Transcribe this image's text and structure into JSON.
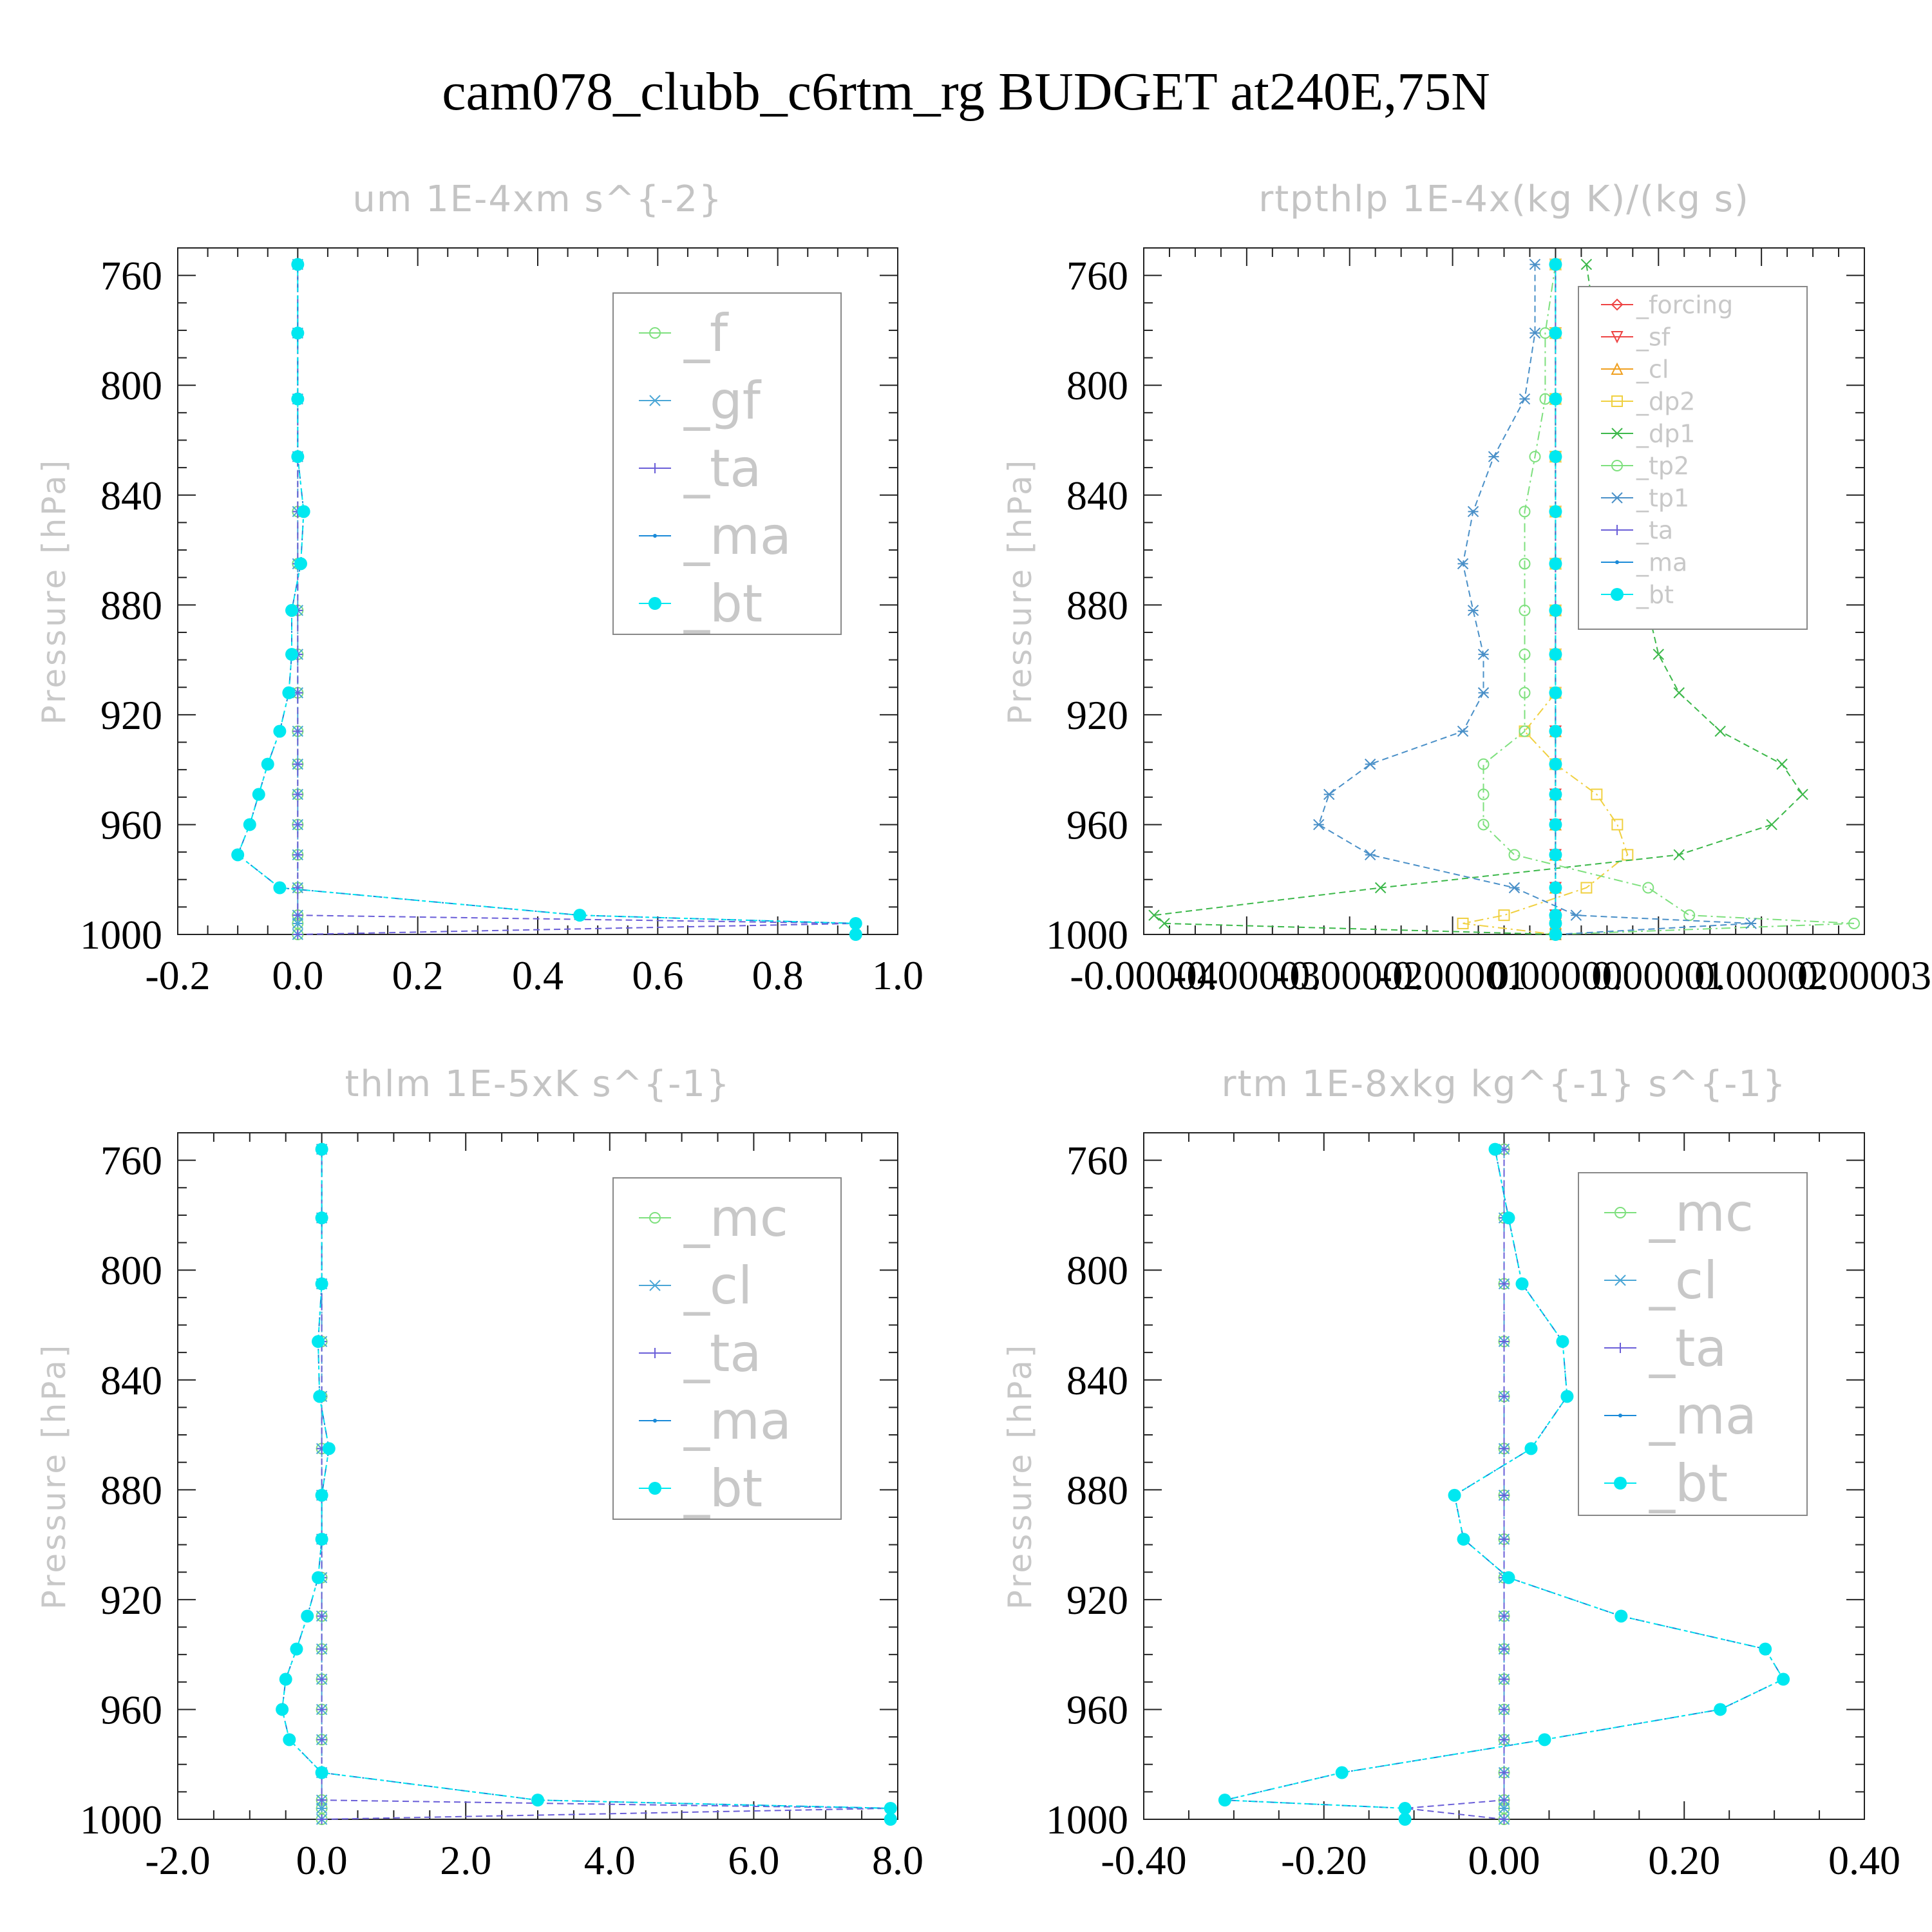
{
  "figure_title": "cam078_clubb_c6rtm_rg  BUDGET at240E,75N",
  "ylabel": "Pressure [hPa]",
  "chart_data": [
    {
      "type": "line",
      "title": "um  1E-4xm s^{-2}",
      "ylabel": "Pressure [hPa]",
      "xlim": [
        -0.2,
        1.0
      ],
      "xticks": [
        "-0.2",
        "0.0",
        "0.2",
        "0.4",
        "0.6",
        "0.8",
        "1.0"
      ],
      "ylim": [
        750,
        1000
      ],
      "yticks": [
        "760",
        "800",
        "840",
        "880",
        "920",
        "960",
        "1000"
      ],
      "legend_position": "top-right",
      "y": [
        756,
        781,
        805,
        826,
        846,
        865,
        882,
        898,
        912,
        926,
        938,
        949,
        960,
        971,
        983,
        993,
        996,
        1000
      ],
      "series": [
        {
          "name": "_f",
          "color": "#7ee07e",
          "marker": "circle",
          "values": [
            0,
            0,
            0,
            0,
            0,
            0,
            0,
            0,
            0,
            0,
            0,
            0,
            0,
            0,
            0,
            0,
            0,
            0
          ]
        },
        {
          "name": "_gf",
          "color": "#4aa6d6",
          "marker": "asterisk",
          "values": [
            0,
            0,
            0,
            0,
            0,
            0,
            0,
            0,
            0,
            0,
            0,
            0,
            0,
            0,
            0,
            0,
            0,
            0
          ]
        },
        {
          "name": "_ta",
          "color": "#6a5ed8",
          "marker": "plus",
          "values": [
            0,
            0,
            0,
            0,
            0,
            0,
            0,
            0,
            0,
            0,
            0,
            0,
            0,
            0,
            0,
            0,
            0.93,
            0
          ]
        },
        {
          "name": "_ma",
          "color": "#1a8ad8",
          "marker": "dot",
          "values": [
            0,
            0,
            0,
            0,
            0.01,
            0.005,
            -0.01,
            -0.01,
            -0.015,
            -0.03,
            -0.05,
            -0.065,
            -0.08,
            -0.1,
            -0.03,
            0.47,
            0.93,
            0.93
          ]
        },
        {
          "name": "_bt",
          "color": "#00e8f0",
          "marker": "filled",
          "values": [
            0,
            0,
            0,
            0,
            0.01,
            0.005,
            -0.01,
            -0.01,
            -0.015,
            -0.03,
            -0.05,
            -0.065,
            -0.08,
            -0.1,
            -0.03,
            0.47,
            0.93,
            0.93
          ]
        }
      ]
    },
    {
      "type": "line",
      "title": "rtpthlp  1E-4x(kg K)/(kg s)",
      "ylabel": "Pressure [hPa]",
      "xlim": [
        -4e-05,
        3e-05
      ],
      "xticks": [
        "-0.00004",
        "-0.00003",
        "-0.00002",
        "-0.00001",
        "0.00000",
        "0.00001",
        "0.00002",
        "0.00003"
      ],
      "ylim": [
        750,
        1000
      ],
      "yticks": [
        "760",
        "800",
        "840",
        "880",
        "920",
        "960",
        "1000"
      ],
      "legend_position": "top-right",
      "y": [
        756,
        781,
        805,
        826,
        846,
        865,
        882,
        898,
        912,
        926,
        938,
        949,
        960,
        971,
        983,
        993,
        996,
        1000
      ],
      "series": [
        {
          "name": "_forcing",
          "color": "#ee4444",
          "marker": "diamond",
          "values": [
            0,
            0,
            0,
            0,
            0,
            0,
            0,
            0,
            0,
            0,
            0,
            0,
            0,
            0,
            0,
            0,
            0,
            0
          ]
        },
        {
          "name": "_sf",
          "color": "#ee4444",
          "marker": "triangle-down",
          "values": [
            0,
            0,
            0,
            0,
            0,
            0,
            0,
            0,
            0,
            0,
            0,
            0,
            0,
            0,
            0,
            0,
            0,
            0
          ]
        },
        {
          "name": "_cl",
          "color": "#f0a020",
          "marker": "triangle-up",
          "values": [
            0,
            0,
            0,
            0,
            0,
            0,
            0,
            0,
            0,
            0,
            0,
            0,
            0,
            0,
            0,
            0,
            0,
            0
          ]
        },
        {
          "name": "_dp2",
          "color": "#f0d040",
          "marker": "square",
          "values": [
            0,
            0,
            0,
            0,
            0,
            0,
            0,
            0,
            0,
            -3e-06,
            0,
            4e-06,
            6e-06,
            7e-06,
            3e-06,
            -5e-06,
            -9e-06,
            0
          ]
        },
        {
          "name": "_dp1",
          "color": "#3cb84a",
          "marker": "x",
          "values": [
            3e-06,
            4e-06,
            4e-06,
            5e-06,
            6e-06,
            7e-06,
            9e-06,
            1e-05,
            1.2e-05,
            1.6e-05,
            2.2e-05,
            2.4e-05,
            2.1e-05,
            1.2e-05,
            -1.7e-05,
            -3.9e-05,
            -3.8e-05,
            0
          ]
        },
        {
          "name": "_tp2",
          "color": "#7ee07e",
          "marker": "circle",
          "values": [
            0,
            -1e-06,
            -1e-06,
            -2e-06,
            -3e-06,
            -3e-06,
            -3e-06,
            -3e-06,
            -3e-06,
            -3e-06,
            -7e-06,
            -7e-06,
            -7e-06,
            -4e-06,
            9e-06,
            1.3e-05,
            2.9e-05,
            0
          ]
        },
        {
          "name": "_tp1",
          "color": "#4a90c8",
          "marker": "asterisk",
          "values": [
            -2e-06,
            -2e-06,
            -3e-06,
            -6e-06,
            -8e-06,
            -9e-06,
            -8e-06,
            -7e-06,
            -7e-06,
            -9e-06,
            -1.8e-05,
            -2.2e-05,
            -2.3e-05,
            -1.8e-05,
            -4e-06,
            2e-06,
            1.9e-05,
            0
          ]
        },
        {
          "name": "_ta",
          "color": "#6a5ed8",
          "marker": "plus",
          "values": [
            0,
            0,
            0,
            0,
            0,
            0,
            0,
            0,
            0,
            0,
            0,
            0,
            0,
            0,
            0,
            0,
            0,
            0
          ]
        },
        {
          "name": "_ma",
          "color": "#1a8ad8",
          "marker": "dot",
          "values": [
            0,
            0,
            0,
            0,
            0,
            0,
            0,
            0,
            0,
            0,
            0,
            0,
            0,
            0,
            0,
            0,
            0,
            0
          ]
        },
        {
          "name": "_bt",
          "color": "#00e8f0",
          "marker": "filled",
          "values": [
            0,
            0,
            0,
            0,
            0,
            0,
            0,
            0,
            0,
            0,
            0,
            0,
            0,
            0,
            0,
            0,
            0,
            0
          ]
        }
      ]
    },
    {
      "type": "line",
      "title": "thlm  1E-5xK s^{-1}",
      "ylabel": "Pressure [hPa]",
      "xlim": [
        -2.0,
        8.0
      ],
      "xticks": [
        "-2.0",
        "0.0",
        "2.0",
        "4.0",
        "6.0",
        "8.0"
      ],
      "ylim": [
        750,
        1000
      ],
      "yticks": [
        "760",
        "800",
        "840",
        "880",
        "920",
        "960",
        "1000"
      ],
      "legend_position": "top-right",
      "y": [
        756,
        781,
        805,
        826,
        846,
        865,
        882,
        898,
        912,
        926,
        938,
        949,
        960,
        971,
        983,
        993,
        996,
        1000
      ],
      "series": [
        {
          "name": "_mc",
          "color": "#7ee07e",
          "marker": "circle",
          "values": [
            0,
            0,
            0,
            0,
            0,
            0,
            0,
            0,
            0,
            0,
            0,
            0,
            0,
            0,
            0,
            0,
            0,
            0
          ]
        },
        {
          "name": "_cl",
          "color": "#4aa6d6",
          "marker": "asterisk",
          "values": [
            0,
            0,
            0,
            0,
            0,
            0,
            0,
            0,
            0,
            0,
            0,
            0,
            0,
            0,
            0,
            0,
            0,
            0
          ]
        },
        {
          "name": "_ta",
          "color": "#6a5ed8",
          "marker": "plus",
          "values": [
            0,
            0,
            0,
            0,
            0,
            0,
            0,
            0,
            0,
            0,
            0,
            0,
            0,
            0,
            0,
            0,
            7.9,
            0
          ]
        },
        {
          "name": "_ma",
          "color": "#1a8ad8",
          "marker": "dot",
          "values": [
            0,
            0,
            0,
            -0.05,
            -0.03,
            0.1,
            0,
            0,
            -0.05,
            -0.2,
            -0.35,
            -0.5,
            -0.55,
            -0.45,
            0,
            3.0,
            7.9,
            7.9
          ]
        },
        {
          "name": "_bt",
          "color": "#00e8f0",
          "marker": "filled",
          "values": [
            0,
            0,
            0,
            -0.05,
            -0.03,
            0.1,
            0,
            0,
            -0.05,
            -0.2,
            -0.35,
            -0.5,
            -0.55,
            -0.45,
            0,
            3.0,
            7.9,
            7.9
          ]
        }
      ]
    },
    {
      "type": "line",
      "title": "rtm  1E-8xkg kg^{-1} s^{-1}",
      "ylabel": "Pressure [hPa]",
      "xlim": [
        -0.4,
        0.4
      ],
      "xticks": [
        "-0.40",
        "-0.20",
        "0.00",
        "0.20",
        "0.40"
      ],
      "ylim": [
        750,
        1000
      ],
      "yticks": [
        "760",
        "800",
        "840",
        "880",
        "920",
        "960",
        "1000"
      ],
      "legend_position": "top-right",
      "y": [
        756,
        781,
        805,
        826,
        846,
        865,
        882,
        898,
        912,
        926,
        938,
        949,
        960,
        971,
        983,
        993,
        996,
        1000
      ],
      "series": [
        {
          "name": "_mc",
          "color": "#7ee07e",
          "marker": "circle",
          "values": [
            0,
            0,
            0,
            0,
            0,
            0,
            0,
            0,
            0,
            0,
            0,
            0,
            0,
            0,
            0,
            0,
            0,
            0
          ]
        },
        {
          "name": "_cl",
          "color": "#4aa6d6",
          "marker": "asterisk",
          "values": [
            0,
            0,
            0,
            0,
            0,
            0,
            0,
            0,
            0,
            0,
            0,
            0,
            0,
            0,
            0,
            0,
            0,
            0
          ]
        },
        {
          "name": "_ta",
          "color": "#6a5ed8",
          "marker": "plus",
          "values": [
            0,
            0,
            0,
            0,
            0,
            0,
            0,
            0,
            0,
            0,
            0,
            0,
            0,
            0,
            0,
            0,
            -0.11,
            0
          ]
        },
        {
          "name": "_ma",
          "color": "#1a8ad8",
          "marker": "dot",
          "values": [
            -0.01,
            0.005,
            0.02,
            0.065,
            0.07,
            0.03,
            -0.055,
            -0.045,
            0.005,
            0.13,
            0.29,
            0.31,
            0.24,
            0.045,
            -0.18,
            -0.31,
            -0.11,
            -0.11
          ]
        },
        {
          "name": "_bt",
          "color": "#00e8f0",
          "marker": "filled",
          "values": [
            -0.01,
            0.005,
            0.02,
            0.065,
            0.07,
            0.03,
            -0.055,
            -0.045,
            0.005,
            0.13,
            0.29,
            0.31,
            0.24,
            0.045,
            -0.18,
            -0.31,
            -0.11,
            -0.11
          ]
        }
      ]
    }
  ]
}
